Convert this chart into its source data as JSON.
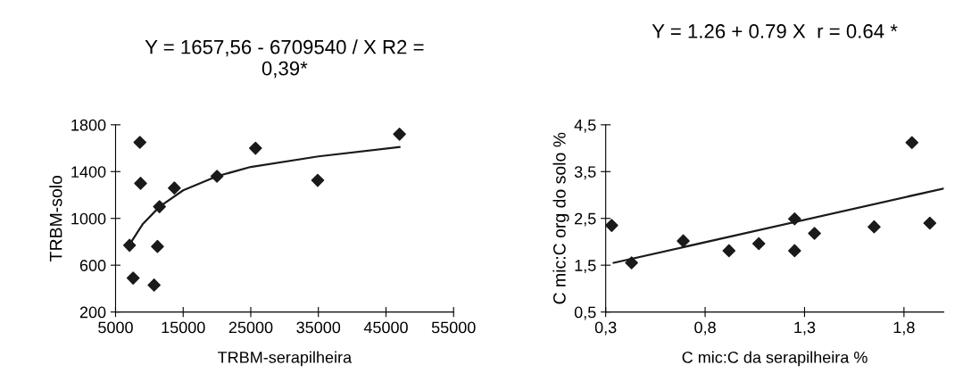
{
  "chart_data": [
    {
      "type": "scatter",
      "title": "Y = 1657,56 - 6709540 / X R2 =\n0,39*",
      "xlabel": "TRBM-serapilheira",
      "ylabel": "TRBM-solo",
      "xlim": [
        5000,
        55000
      ],
      "xticks": [
        5000,
        15000,
        25000,
        35000,
        45000,
        55000
      ],
      "ylim": [
        200,
        1800
      ],
      "yticks": [
        200,
        600,
        1000,
        1400,
        1800
      ],
      "grid": false,
      "legend": false,
      "series": [
        {
          "marker": "diamond",
          "color": "#1a1a1a",
          "x": [
            7070,
            7600,
            8600,
            8700,
            10700,
            11200,
            11500,
            13700,
            20000,
            25700,
            34900,
            47000
          ],
          "values": [
            770,
            490,
            1650,
            1300,
            430,
            760,
            1100,
            1260,
            1360,
            1600,
            1325,
            1720
          ]
        },
        {
          "type": "line",
          "color": "#1a1a1a",
          "x": [
            7000,
            9000,
            11500,
            15000,
            20000,
            25000,
            35000,
            47000
          ],
          "values": [
            770,
            950,
            1100,
            1240,
            1360,
            1440,
            1530,
            1610
          ]
        }
      ]
    },
    {
      "type": "scatter",
      "title": "Y = 1.26 + 0.79 X  r = 0.64 *",
      "xlabel": "C mic:C da serapilheira %",
      "ylabel": "C mic:C org do solo %",
      "xlim": [
        0.3,
        2.0
      ],
      "xticks": [
        {
          "value": 0.3,
          "label": "0,3"
        },
        {
          "value": 0.8,
          "label": "0,8"
        },
        {
          "value": 1.3,
          "label": "1,3"
        },
        {
          "value": 1.8,
          "label": "1,8"
        }
      ],
      "ylim": [
        0.5,
        4.5
      ],
      "yticks": [
        {
          "value": 0.5,
          "label": "0,5"
        },
        {
          "value": 1.5,
          "label": "1,5"
        },
        {
          "value": 2.5,
          "label": "2,5"
        },
        {
          "value": 3.5,
          "label": "3,5"
        },
        {
          "value": 4.5,
          "label": "4,5"
        }
      ],
      "grid": false,
      "legend": false,
      "series": [
        {
          "marker": "diamond",
          "color": "#1a1a1a",
          "x": [
            0.33,
            0.43,
            0.69,
            0.92,
            1.07,
            1.25,
            1.25,
            1.35,
            1.65,
            1.84,
            1.93
          ],
          "values": [
            2.35,
            1.55,
            2.02,
            1.81,
            1.96,
            1.81,
            2.49,
            2.18,
            2.32,
            4.12,
            2.4
          ]
        },
        {
          "type": "line",
          "color": "#1a1a1a",
          "x": [
            0.34,
            2.0
          ],
          "values": [
            1.55,
            3.14
          ]
        }
      ]
    }
  ]
}
